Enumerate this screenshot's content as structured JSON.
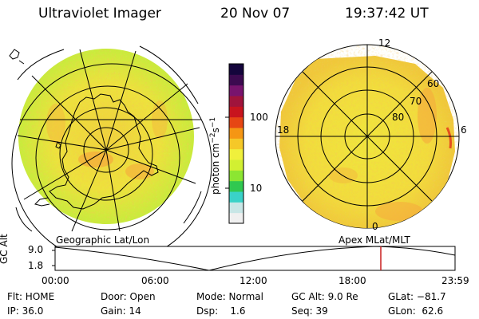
{
  "header": {
    "title": "Ultraviolet Imager",
    "date": "20 Nov 07",
    "time": "19:37:42 UT"
  },
  "left_panel": {
    "label": "Geographic Lat/Lon"
  },
  "right_panel": {
    "label": "Apex MLat/MLT",
    "mlt_labels": [
      "12",
      "18",
      "6",
      "0"
    ],
    "lat_labels": [
      "60",
      "70",
      "80"
    ]
  },
  "colorbar": {
    "unit": "photon cm",
    "unit_exp1": "−2",
    "unit_mid": "s",
    "unit_exp2": "−1",
    "ticks": [
      "100",
      "10"
    ],
    "colors": [
      "#f0f0f0",
      "#c8e6e6",
      "#3ad2c8",
      "#30c850",
      "#8ce632",
      "#d2f032",
      "#f0f03c",
      "#f5c828",
      "#f59614",
      "#e64614",
      "#c8141e",
      "#a0143c",
      "#78146e",
      "#3c0a50",
      "#14053c"
    ]
  },
  "altitude_plot": {
    "ylabel": "GC Alt",
    "yticks": [
      "9.0",
      "1.8"
    ],
    "xticks": [
      "00:00",
      "06:00",
      "12:00",
      "18:00",
      "23:59"
    ],
    "marker_color": "#c81e1e"
  },
  "info": {
    "flt": "Flt: HOME",
    "ip": "IP: 36.0",
    "door": "Door: Open",
    "gain": "Gain: 14",
    "mode": "Mode: Normal",
    "dsp": "Dsp:    1.6",
    "gcalt": "GC Alt: 9.0 Re",
    "seq": "Seq: 39",
    "glat": "GLat: −81.7",
    "glon": "GLon:  62.6"
  }
}
